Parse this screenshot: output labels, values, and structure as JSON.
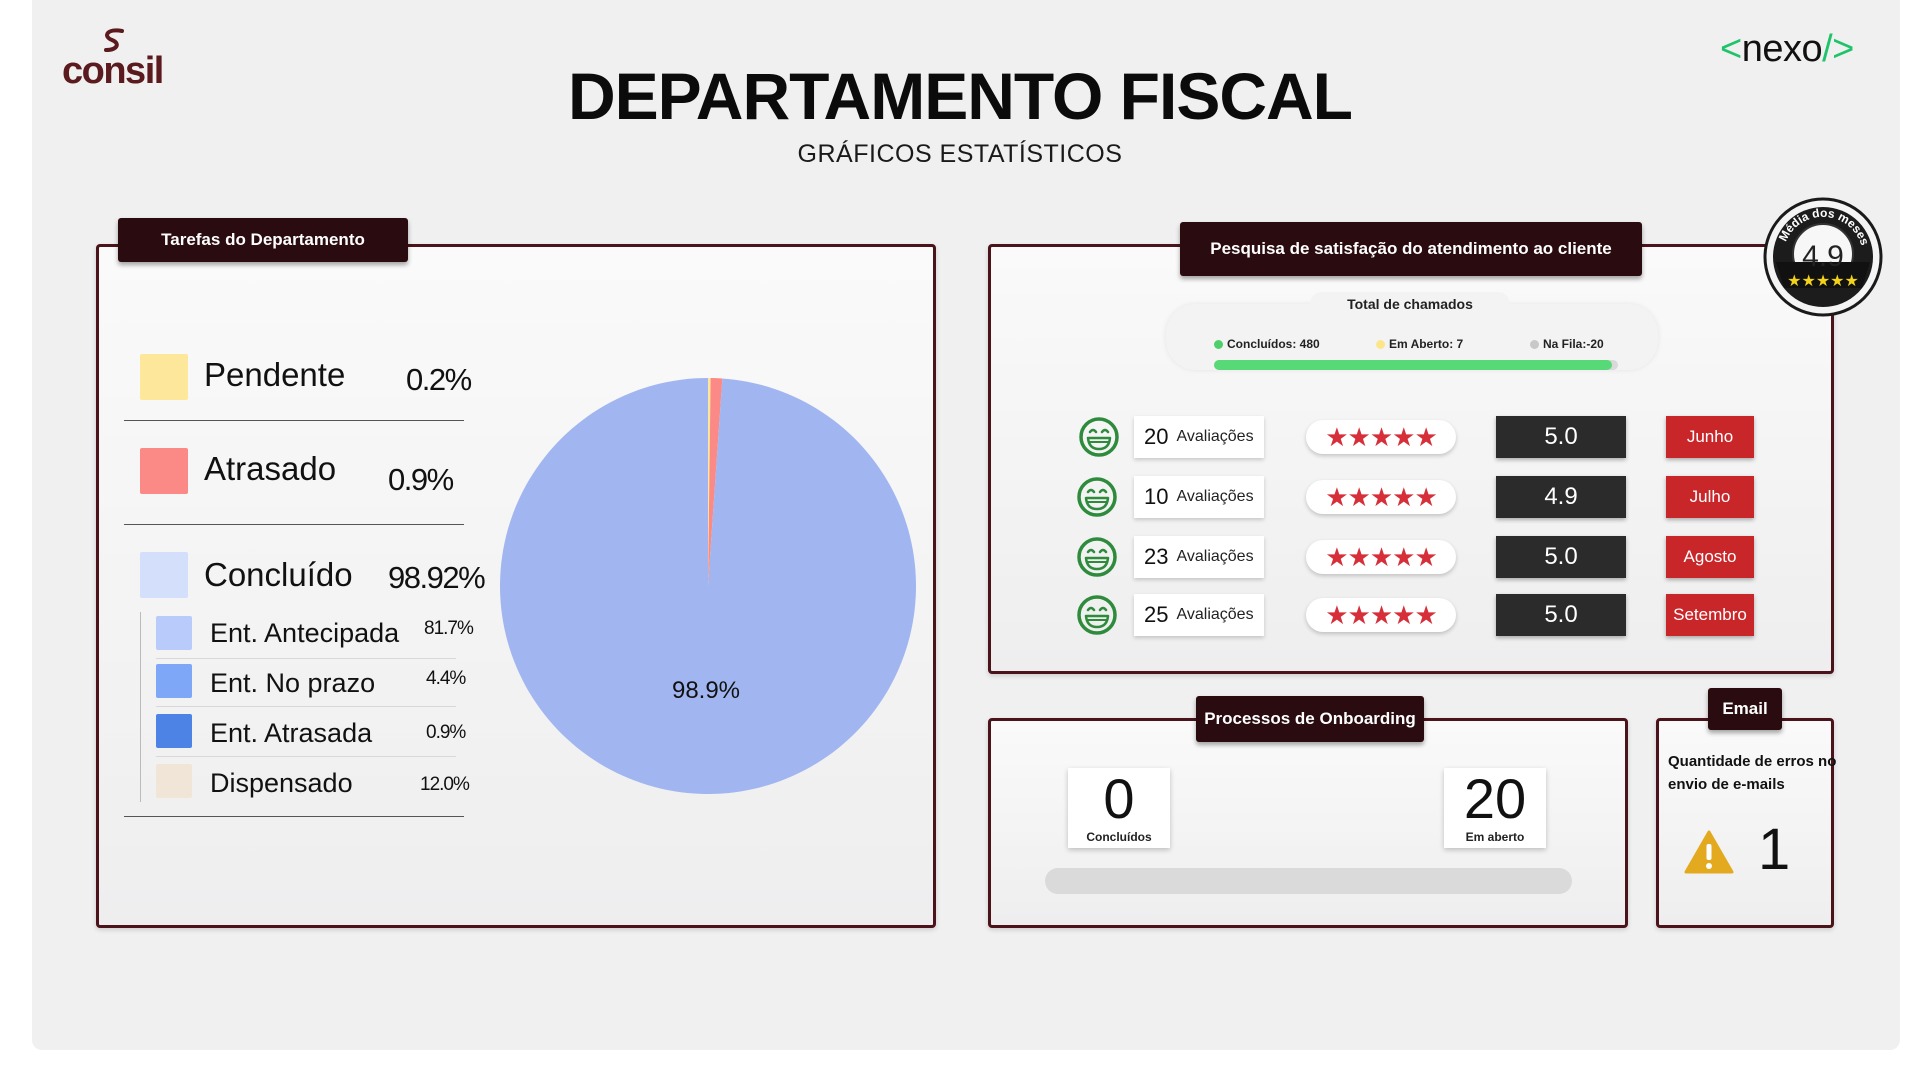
{
  "header": {
    "logo_left": "consil",
    "logo_right_open": "<",
    "logo_right_text": "nexo",
    "logo_right_close": "/>",
    "title": "DEPARTAMENTO FISCAL",
    "subtitle": "GRÁFICOS ESTATÍSTICOS"
  },
  "tasks": {
    "tab": "Tarefas do Departamento",
    "items": [
      {
        "label": "Pendente",
        "value": "0.2%",
        "color": "#fde79a"
      },
      {
        "label": "Atrasado",
        "value": "0.9%",
        "color": "#fb8a86"
      },
      {
        "label": "Concluído",
        "value": "98.92%",
        "color": "#d4dffb"
      }
    ],
    "subitems": [
      {
        "label": "Ent. Antecipada",
        "value": "81.7%",
        "color": "#b8cbfb"
      },
      {
        "label": "Ent. No prazo",
        "value": "4.4%",
        "color": "#7ea7f8"
      },
      {
        "label": "Ent. Atrasada",
        "value": "0.9%",
        "color": "#4e83e6"
      },
      {
        "label": "Dispensado",
        "value": "12.0%",
        "color": "#f1e5d8"
      }
    ]
  },
  "chart_data": {
    "type": "pie",
    "categories": [
      "Pendente",
      "Atrasado",
      "Concluído"
    ],
    "values": [
      0.2,
      0.9,
      98.9
    ],
    "colors": [
      "#fde79a",
      "#fb8a86",
      "#a1b6f0"
    ],
    "data_label": "98.9%"
  },
  "satisfaction": {
    "tab": "Pesquisa de satisfação do atendimento ao cliente",
    "total_title": "Total de chamados",
    "concluidos": "Concluídos: 480",
    "em_aberto": "Em Aberto: 7",
    "na_fila": "Na Fila:-20",
    "progress_fraction": 0.985,
    "colors": {
      "concluidos": "#4ccf6c",
      "em_aberto": "#fde68a",
      "na_fila": "#c8c8c8",
      "stars": "#d62f3a",
      "month": "#c9262a"
    },
    "rows": [
      {
        "count": "20",
        "label": "Avaliações",
        "stars": "★★★★★",
        "score": "5.0",
        "month": "Junho"
      },
      {
        "count": "10",
        "label": "Avaliações",
        "stars": "★★★★★",
        "score": "4.9",
        "month": "Julho"
      },
      {
        "count": "23",
        "label": "Avaliações",
        "stars": "★★★★★",
        "score": "5.0",
        "month": "Agosto"
      },
      {
        "count": "25",
        "label": "Avaliações",
        "stars": "★★★★★",
        "score": "5.0",
        "month": "Setembro"
      }
    ],
    "badge": {
      "caption": "Média dos meses",
      "value": "4.9",
      "icon": "medal-badge-icon"
    }
  },
  "onboarding": {
    "tab": "Processos de Onboarding",
    "done_value": "0",
    "done_label": "Concluídos",
    "open_value": "20",
    "open_label": "Em aberto"
  },
  "email": {
    "tab": "Email",
    "description": "Quantidade de erros no envio de e-mails",
    "count": "1",
    "icon": "warning-icon",
    "icon_color": "#e3a91f"
  }
}
